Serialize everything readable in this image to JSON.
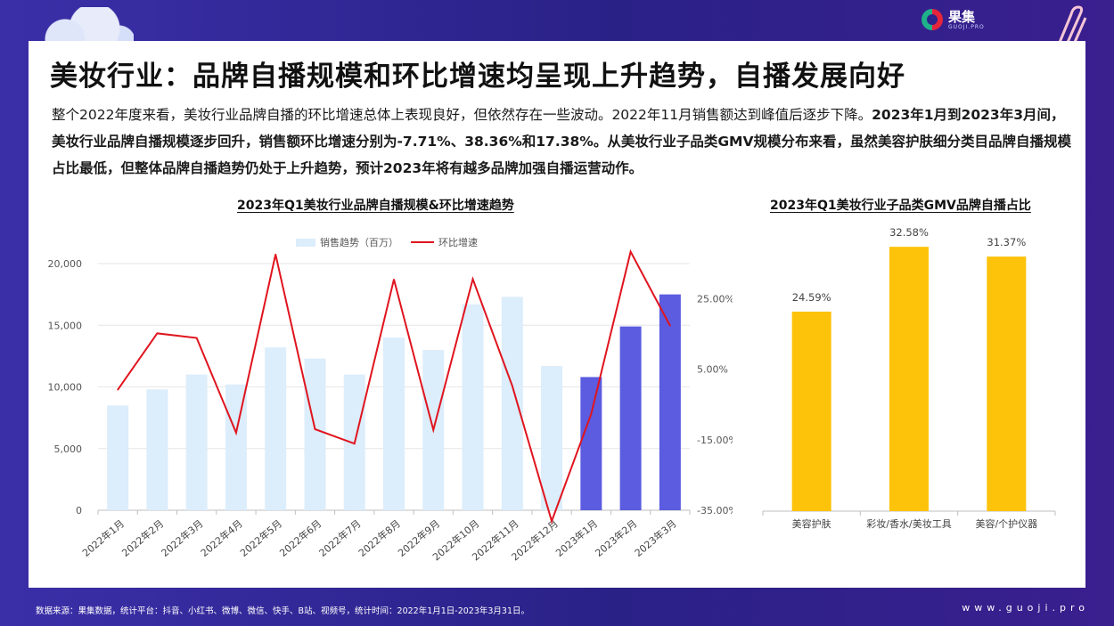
{
  "brand": {
    "name": "果集",
    "sub": "GUOJI.PRO"
  },
  "title": "美妆行业：品牌自播规模和环比增速均呈现上升趋势，自播发展向好",
  "description": {
    "part1": "整个2022年度来看，美妆行业品牌自播的环比增速总体上表现良好，但依然存在一些波动。2022年11月销售额达到峰值后逐步下降。",
    "part2": "2023年1月到2023年3月间，美妆行业品牌自播规模逐步回升，销售额环比增速分别为-7.71%、38.36%和17.38%。从美妆行业子品类GMV规模分布来看，虽然美容护肤细分类目品牌自播规模占比最低，但整体品牌自播趋势仍处于上升趋势，预计2023年将有越多品牌加强自播运营动作。"
  },
  "footer": {
    "source": "数据来源：果集数据，统计平台：抖音、小红书、微博、微信、快手、B站、视频号，统计时间：2022年1月1日-2023年3月31日。",
    "site": "www.guoji.pro"
  },
  "chart_data": [
    {
      "type": "bar",
      "title": "2023年Q1美妆行业品牌自播规模&环比增速趋势",
      "categories": [
        "2022年1月",
        "2022年2月",
        "2022年3月",
        "2022年4月",
        "2022年5月",
        "2022年6月",
        "2022年7月",
        "2022年8月",
        "2022年9月",
        "2022年10月",
        "2022年11月",
        "2022年12月",
        "2023年1月",
        "2023年2月",
        "2023年3月"
      ],
      "series": [
        {
          "name": "销售趋势（百万）",
          "type": "bar",
          "axis": "left",
          "values": [
            8500,
            9800,
            11000,
            10200,
            13200,
            12300,
            11000,
            14000,
            13000,
            16700,
            17300,
            11700,
            10800,
            14900,
            17500
          ],
          "colors": [
            "#dcedfb",
            "#dcedfb",
            "#dcedfb",
            "#dcedfb",
            "#dcedfb",
            "#dcedfb",
            "#dcedfb",
            "#dcedfb",
            "#dcedfb",
            "#dcedfb",
            "#dcedfb",
            "#dcedfb",
            "#5b5ce0",
            "#5b5ce0",
            "#5b5ce0"
          ]
        },
        {
          "name": "环比增速",
          "type": "line",
          "axis": "right",
          "color": "#e0141e",
          "values": [
            -0.8,
            15.2,
            13.9,
            -13.0,
            37.6,
            -12.0,
            -16.1,
            30.5,
            -12.2,
            30.6,
            0.3,
            -38.1,
            -7.71,
            38.36,
            17.38
          ]
        }
      ],
      "y_left": {
        "min": 0,
        "max": 20000,
        "ticks": [
          "0",
          "5,000",
          "10,000",
          "15,000",
          "20,000"
        ]
      },
      "y_right": {
        "min": -35,
        "max": 35,
        "ticks": [
          "-35.00%",
          "-15.00%",
          "5.00%",
          "25.00%"
        ]
      },
      "grid": true,
      "legend": "top"
    },
    {
      "type": "bar",
      "title": "2023年Q1美妆行业子品类GMV品牌自播占比",
      "categories": [
        "美容护肤",
        "彩妆/香水/美妆工具",
        "美容/个护仪器"
      ],
      "values": [
        24.59,
        32.58,
        31.37
      ],
      "labels": [
        "24.59%",
        "32.58%",
        "31.37%"
      ],
      "color": "#fdc20a",
      "ylim": [
        0,
        36
      ]
    }
  ]
}
